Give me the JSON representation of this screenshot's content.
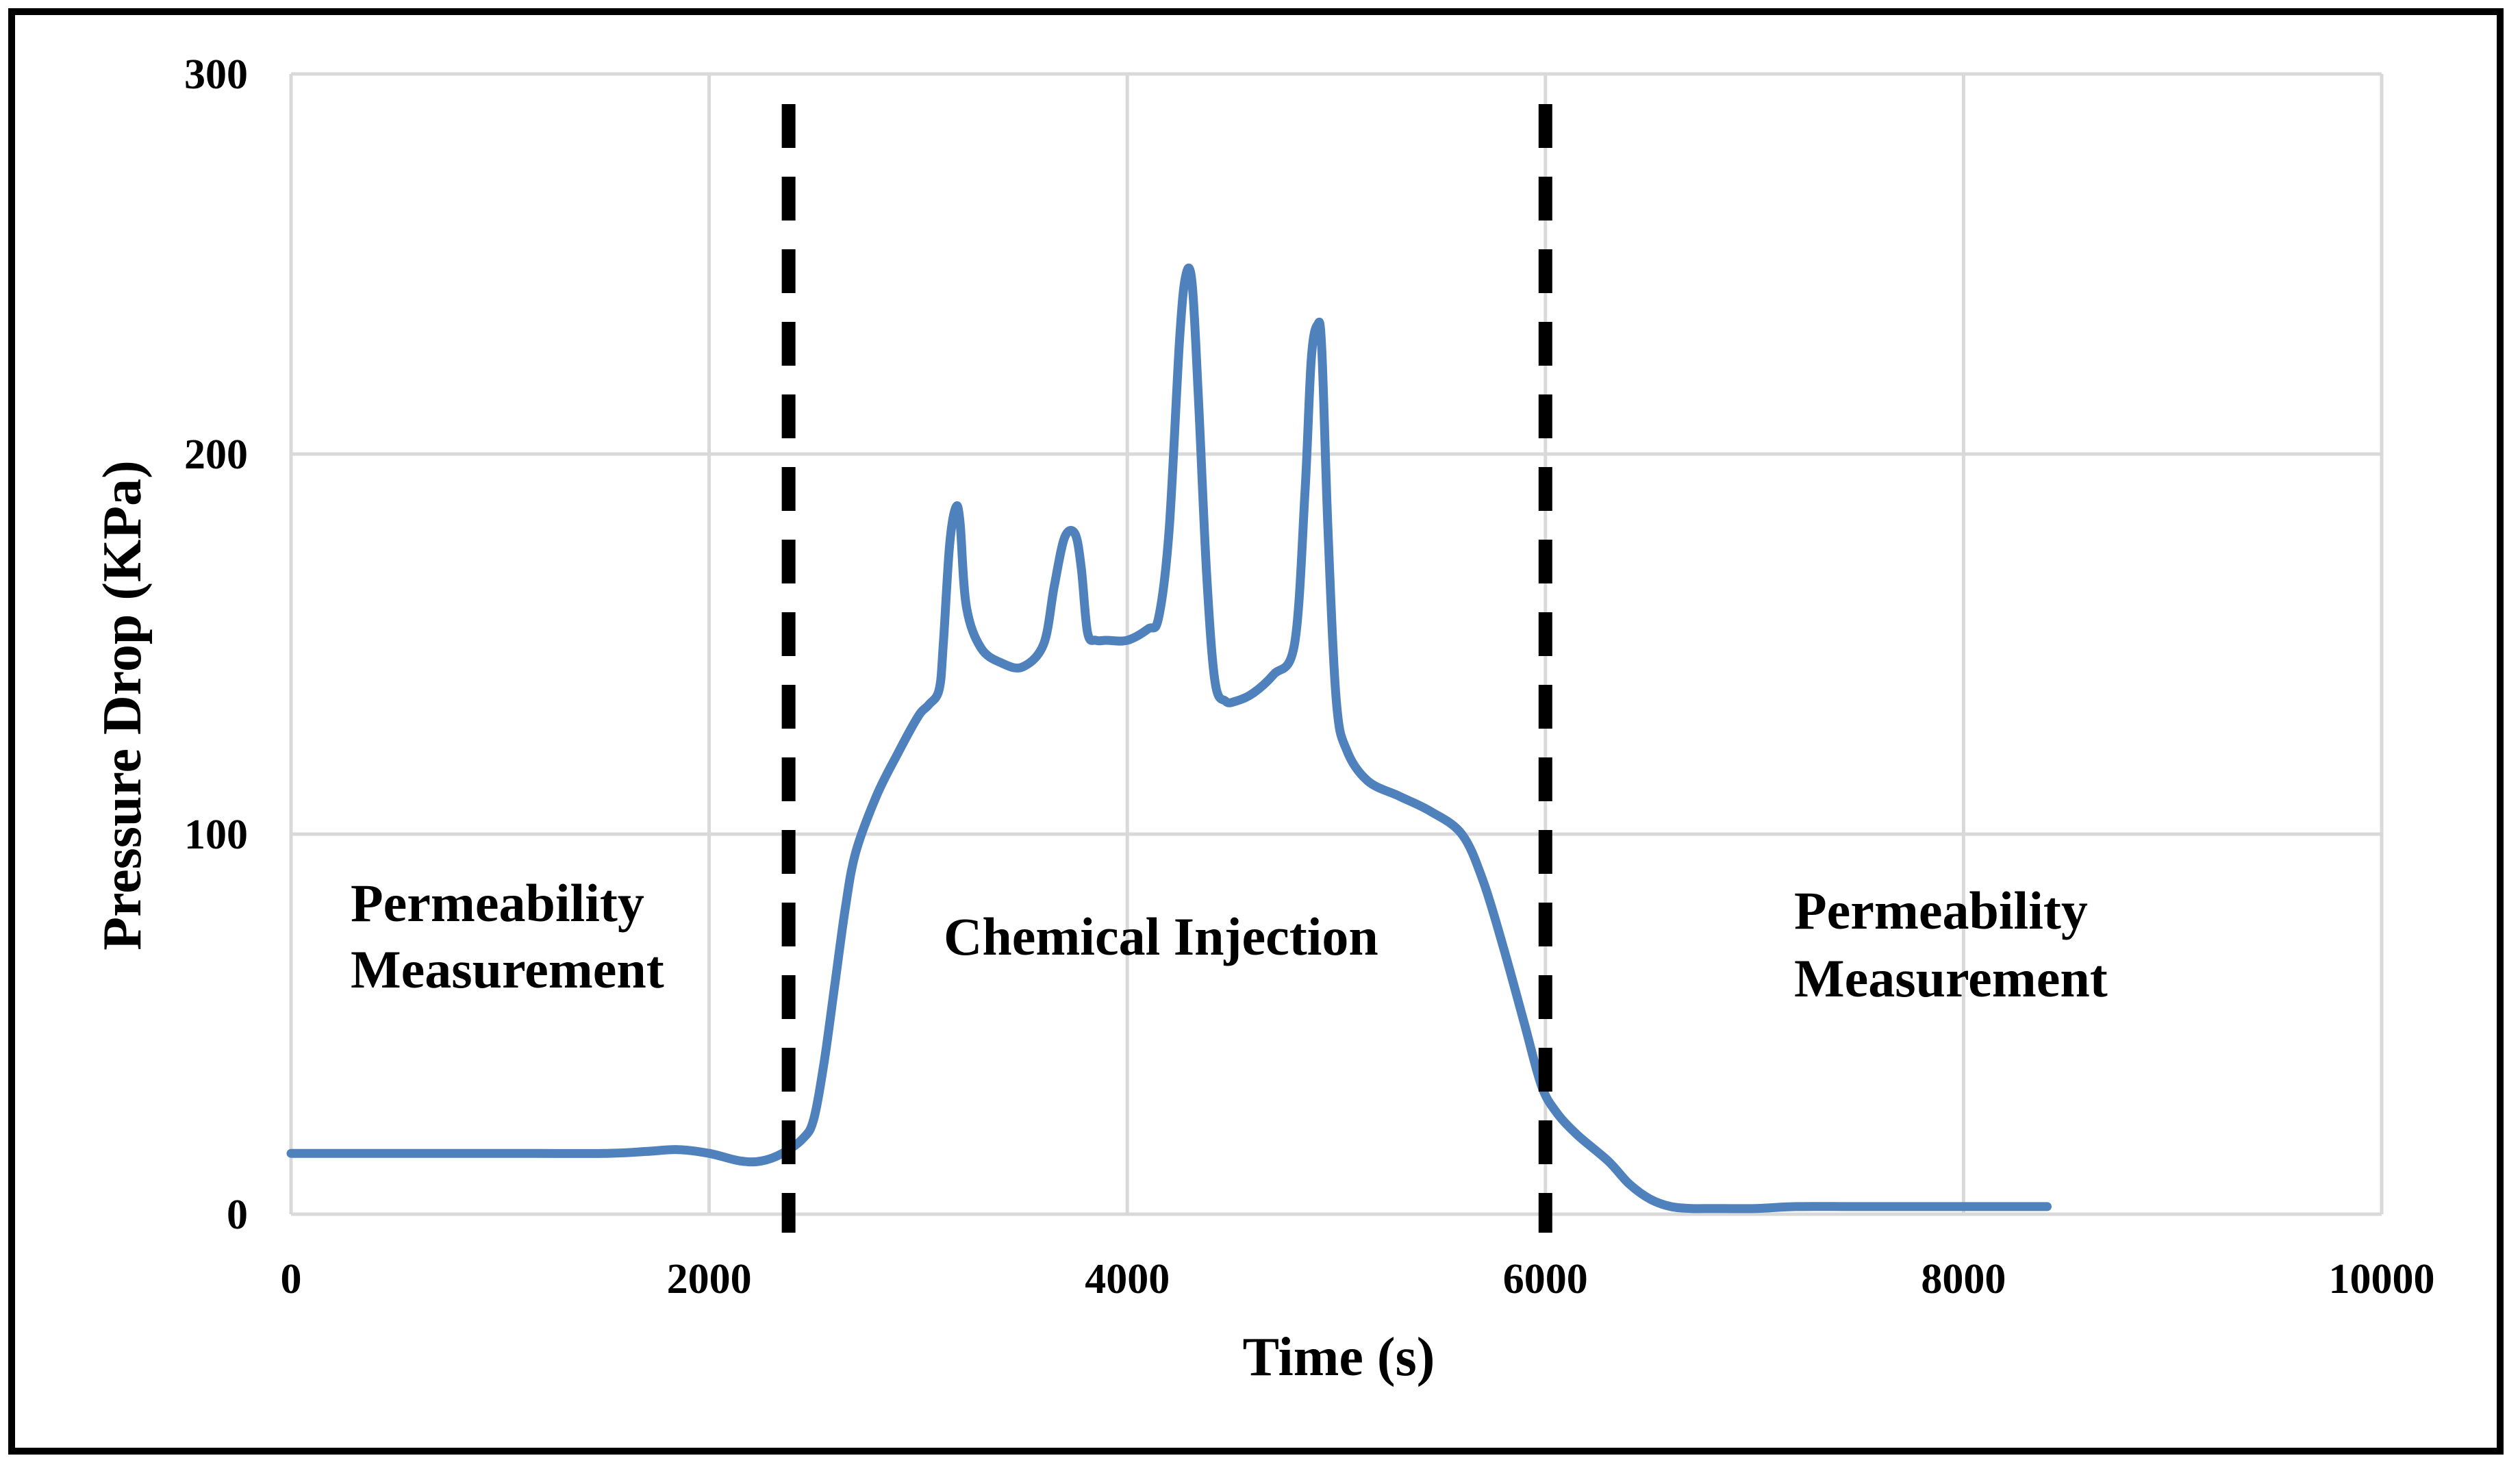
{
  "chart_data": {
    "type": "line",
    "title": "",
    "xlabel": "Time (s)",
    "ylabel": "Pressure Drop (KPa)",
    "xlim": [
      0,
      10000
    ],
    "ylim": [
      0,
      300
    ],
    "xticks": [
      0,
      2000,
      4000,
      6000,
      8000,
      10000
    ],
    "yticks": [
      0,
      100,
      200,
      300
    ],
    "xtick_labels": [
      "0",
      "2000",
      "4000",
      "6000",
      "8000",
      "10000"
    ],
    "ytick_labels": [
      "0",
      "100",
      "200",
      "300"
    ],
    "grid": true,
    "colors": {
      "series": "#4f81bd",
      "grid": "#d9d9d9",
      "boundary": "#000000"
    },
    "series": [
      {
        "name": "Pressure Drop",
        "x": [
          0,
          500,
          1000,
          1500,
          1700,
          1850,
          2000,
          2150,
          2250,
          2350,
          2450,
          2500,
          2550,
          2600,
          2650,
          2700,
          2800,
          2900,
          3000,
          3050,
          3100,
          3120,
          3150,
          3180,
          3200,
          3230,
          3300,
          3400,
          3500,
          3600,
          3650,
          3700,
          3750,
          3780,
          3810,
          3850,
          3900,
          4000,
          4100,
          4150,
          4200,
          4250,
          4280,
          4310,
          4340,
          4380,
          4420,
          4470,
          4520,
          4600,
          4700,
          4800,
          4850,
          4880,
          4910,
          4930,
          4960,
          5000,
          5050,
          5150,
          5300,
          5450,
          5600,
          5700,
          5800,
          5900,
          5980,
          6050,
          6150,
          6300,
          6400,
          6500,
          6600,
          6700,
          6800,
          7000,
          7200,
          7500,
          8000,
          8400
        ],
        "y": [
          16,
          16,
          16,
          16,
          16.5,
          17,
          16,
          14,
          14,
          16,
          20,
          25,
          40,
          60,
          80,
          95,
          110,
          121,
          131,
          134,
          138,
          150,
          176,
          186,
          182,
          160,
          149,
          145,
          144,
          150,
          165,
          178,
          179,
          170,
          153,
          151,
          151,
          151,
          154,
          157,
          180,
          230,
          247,
          245,
          215,
          168,
          140,
          135,
          135,
          137,
          142,
          150,
          190,
          225,
          234,
          228,
          180,
          135,
          122,
          114,
          110,
          106,
          100,
          88,
          70,
          50,
          34,
          27,
          21,
          14,
          8,
          4,
          2,
          1.5,
          1.5,
          1.5,
          2,
          2,
          2,
          2
        ]
      }
    ],
    "vertical_lines": [
      {
        "name": "chemical-injection-start",
        "x": 2380
      },
      {
        "name": "chemical-injection-end",
        "x": 6000
      }
    ],
    "annotations": [
      {
        "lines": [
          "Permeability",
          "Measurement"
        ]
      },
      {
        "lines": [
          "Chemical Injection"
        ]
      },
      {
        "lines": [
          "Permeability",
          "Measurement"
        ]
      }
    ]
  }
}
